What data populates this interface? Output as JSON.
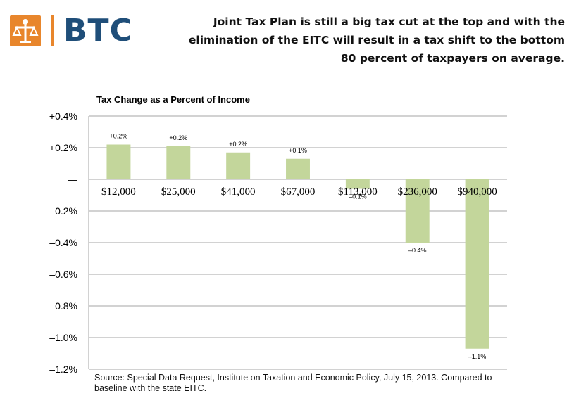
{
  "logo": {
    "text": "BTC",
    "icon": "scales-of-justice-icon",
    "color": "#e8862c",
    "text_color": "#1f4e79"
  },
  "headline": "Joint Tax Plan is still a big tax cut at the top and with the elimination of the EITC will result in a tax shift to the bottom 80 percent of taxpayers on average.",
  "source": "Source: Special Data Request, Institute on Taxation and Economic Policy, July 15, 2013. Compared to baseline with the state EITC.",
  "chart_data": {
    "type": "bar",
    "title": "Tax Change as a Percent of Income",
    "xlabel": "",
    "ylabel": "",
    "categories": [
      "$12,000",
      "$25,000",
      "$41,000",
      "$67,000",
      "$113,000",
      "$236,000",
      "$940,000"
    ],
    "values": [
      0.22,
      0.21,
      0.17,
      0.13,
      -0.06,
      -0.4,
      -1.07
    ],
    "data_labels": [
      "+0.2%",
      "+0.2%",
      "+0.2%",
      "+0.1%",
      "–0.1%",
      "–0.4%",
      "–1.1%"
    ],
    "y_ticks": [
      0.4,
      0.2,
      0,
      -0.2,
      -0.4,
      -0.6,
      -0.8,
      -1.0,
      -1.2
    ],
    "y_tick_labels": [
      "+0.4%",
      "+0.2%",
      "—",
      "–0.2%",
      "–0.4%",
      "–0.6%",
      "–0.8%",
      "–1.0%",
      "–1.2%"
    ],
    "ylim": [
      -1.2,
      0.4
    ],
    "grid": true,
    "bar_color": "#c3d69b",
    "legend": "none"
  }
}
